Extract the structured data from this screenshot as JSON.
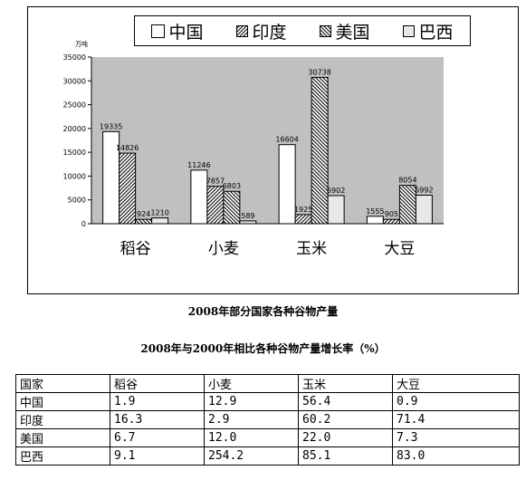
{
  "chart_data": {
    "type": "bar",
    "unit_label": "万吨",
    "categories": [
      "稻谷",
      "小麦",
      "玉米",
      "大豆"
    ],
    "series": [
      {
        "name": "中国",
        "values": [
          19335,
          11246,
          16604,
          1555
        ],
        "labels": [
          "19335",
          "11246",
          "16604",
          "1555"
        ],
        "pattern": "white"
      },
      {
        "name": "印度",
        "values": [
          14826,
          7857,
          1925,
          905
        ],
        "labels": [
          "14826",
          "7857",
          "1925",
          "905"
        ],
        "pattern": "diagonal"
      },
      {
        "name": "美国",
        "values": [
          924,
          6803,
          30738,
          8054
        ],
        "labels": [
          "924",
          "6803",
          "30738",
          "8054"
        ],
        "pattern": "backdiagonal"
      },
      {
        "name": "巴西",
        "values": [
          1210,
          589,
          5902,
          5992
        ],
        "labels": [
          "1210",
          "589",
          "5902",
          "5992"
        ],
        "pattern": "gray"
      }
    ],
    "ylim": [
      0,
      35000
    ],
    "yticks": [
      "0",
      "5000",
      "10000",
      "15000",
      "20000",
      "25000",
      "30000",
      "35000"
    ],
    "plot_background": "#c0c0c0",
    "legend_position": "top"
  },
  "captions": {
    "chart_title": "2008年部分国家各种谷物产量",
    "table_title": "2008年与2000年相比各种谷物产量增长率（%）"
  },
  "growth_table": {
    "header": [
      "国家",
      "稻谷",
      "小麦",
      "玉米",
      "大豆"
    ],
    "rows": [
      [
        "中国",
        "1.9",
        "12.9",
        "56.4",
        "0.9"
      ],
      [
        "印度",
        "16.3",
        "2.9",
        "60.2",
        "71.4"
      ],
      [
        "美国",
        "6.7",
        "12.0",
        "22.0",
        "7.3"
      ],
      [
        "巴西",
        "9.1",
        "254.2",
        "85.1",
        "83.0"
      ]
    ]
  }
}
